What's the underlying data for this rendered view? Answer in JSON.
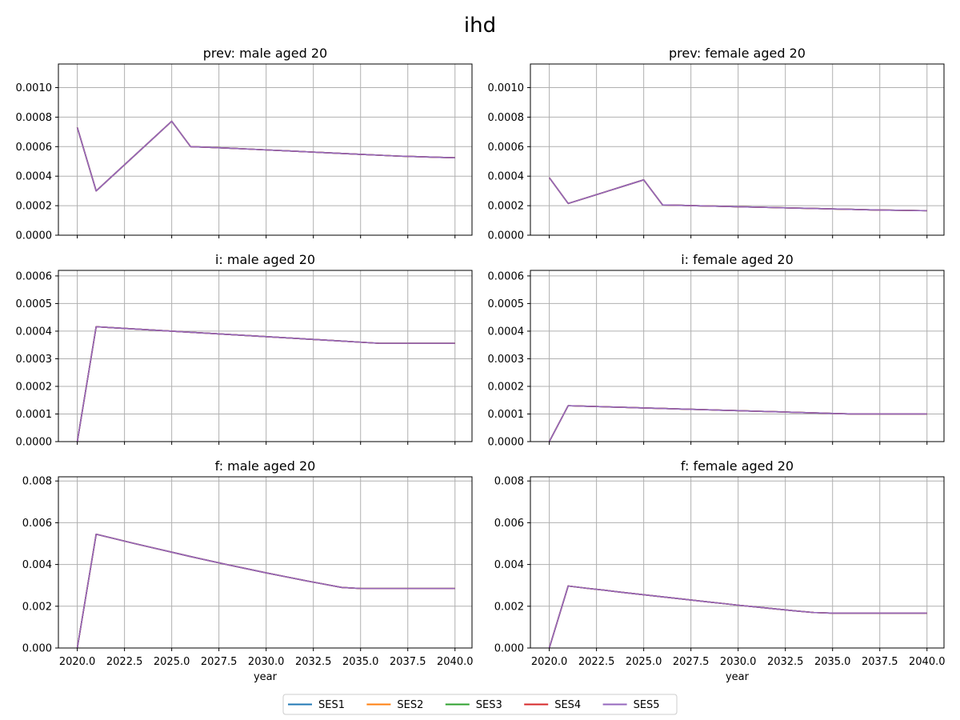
{
  "chart_data": {
    "type": "line",
    "title": "ihd",
    "xlabel": "year",
    "xlim": [
      2019.0,
      2040.9
    ],
    "x_ticks": [
      2020.0,
      2022.5,
      2025.0,
      2027.5,
      2030.0,
      2032.5,
      2035.0,
      2037.5,
      2040.0
    ],
    "x_tick_labels": [
      "2020.0",
      "2022.5",
      "2025.0",
      "2027.5",
      "2030.0",
      "2032.5",
      "2035.0",
      "2037.5",
      "2040.0"
    ],
    "x": [
      2020,
      2021,
      2022,
      2023,
      2024,
      2025,
      2026,
      2027,
      2028,
      2029,
      2030,
      2031,
      2032,
      2033,
      2034,
      2035,
      2036,
      2037,
      2038,
      2039,
      2040
    ],
    "legend": [
      "SES1",
      "SES2",
      "SES3",
      "SES4",
      "SES5"
    ],
    "series_colors": [
      "#1f77b4",
      "#ff7f0e",
      "#2ca02c",
      "#d62728",
      "#9467bd"
    ],
    "panels": [
      {
        "title": "prev: male aged 20",
        "ylim": [
          0,
          0.00116
        ],
        "y_ticks": [
          0,
          0.0002,
          0.0004,
          0.0006,
          0.0008,
          0.001
        ],
        "y_tick_labels": [
          "0.0000",
          "0.0002",
          "0.0004",
          "0.0006",
          "0.0008",
          "0.0010"
        ],
        "show_x_tick_labels": false,
        "show_xlabel": false,
        "values": [
          0.00073,
          0.0003,
          0.000418,
          0.000536,
          0.000654,
          0.000772,
          0.0006,
          0.000595,
          0.00059,
          0.000584,
          0.000578,
          0.000572,
          0.000566,
          0.00056,
          0.000554,
          0.000548,
          0.000542,
          0.000536,
          0.000532,
          0.000528,
          0.000525
        ]
      },
      {
        "title": "prev: female aged 20",
        "ylim": [
          0,
          0.00116
        ],
        "y_ticks": [
          0,
          0.0002,
          0.0004,
          0.0006,
          0.0008,
          0.001
        ],
        "y_tick_labels": [
          "0.0000",
          "0.0002",
          "0.0004",
          "0.0006",
          "0.0008",
          "0.0010"
        ],
        "show_x_tick_labels": false,
        "show_xlabel": false,
        "values": [
          0.00039,
          0.000215,
          0.000255,
          0.000295,
          0.000335,
          0.000375,
          0.000205,
          0.000202,
          0.000199,
          0.000196,
          0.000193,
          0.00019,
          0.000187,
          0.000184,
          0.000181,
          0.000178,
          0.000175,
          0.000172,
          0.00017,
          0.000168,
          0.000166
        ]
      },
      {
        "title": "i: male aged 20",
        "ylim": [
          0,
          0.00062
        ],
        "y_ticks": [
          0,
          0.0001,
          0.0002,
          0.0003,
          0.0004,
          0.0005,
          0.0006
        ],
        "y_tick_labels": [
          "0.0000",
          "0.0001",
          "0.0002",
          "0.0003",
          "0.0004",
          "0.0005",
          "0.0006"
        ],
        "show_x_tick_labels": false,
        "show_xlabel": false,
        "values": [
          0,
          0.000416,
          0.000412,
          0.000408,
          0.000404,
          0.0004,
          0.000396,
          0.000392,
          0.000388,
          0.000384,
          0.00038,
          0.000376,
          0.000372,
          0.000368,
          0.000364,
          0.00036,
          0.000356,
          0.000356,
          0.000356,
          0.000356,
          0.000356
        ]
      },
      {
        "title": "i: female aged 20",
        "ylim": [
          0,
          0.00062
        ],
        "y_ticks": [
          0,
          0.0001,
          0.0002,
          0.0003,
          0.0004,
          0.0005,
          0.0006
        ],
        "y_tick_labels": [
          "0.0000",
          "0.0001",
          "0.0002",
          "0.0003",
          "0.0004",
          "0.0005",
          "0.0006"
        ],
        "show_x_tick_labels": false,
        "show_xlabel": false,
        "values": [
          0,
          0.00013,
          0.000128,
          0.000126,
          0.000124,
          0.000122,
          0.00012,
          0.000118,
          0.000116,
          0.000114,
          0.000112,
          0.00011,
          0.000108,
          0.000106,
          0.000104,
          0.000102,
          0.0001,
          0.0001,
          0.0001,
          0.0001,
          0.0001
        ]
      },
      {
        "title": "f: male aged 20",
        "ylim": [
          0,
          0.0082
        ],
        "y_ticks": [
          0,
          0.002,
          0.004,
          0.006,
          0.008
        ],
        "y_tick_labels": [
          "0.000",
          "0.002",
          "0.004",
          "0.006",
          "0.008"
        ],
        "show_x_tick_labels": true,
        "show_xlabel": true,
        "values": [
          0,
          0.00545,
          0.00523,
          0.00501,
          0.0048,
          0.00459,
          0.00438,
          0.00418,
          0.00398,
          0.00379,
          0.0036,
          0.00342,
          0.00324,
          0.00307,
          0.0029,
          0.00285,
          0.00285,
          0.00285,
          0.00285,
          0.00285,
          0.00285
        ]
      },
      {
        "title": "f: female aged 20",
        "ylim": [
          0,
          0.0082
        ],
        "y_ticks": [
          0,
          0.002,
          0.004,
          0.006,
          0.008
        ],
        "y_tick_labels": [
          "0.000",
          "0.002",
          "0.004",
          "0.006",
          "0.008"
        ],
        "show_x_tick_labels": true,
        "show_xlabel": true,
        "values": [
          0,
          0.00297,
          0.00286,
          0.00276,
          0.00265,
          0.00255,
          0.00245,
          0.00235,
          0.00225,
          0.00215,
          0.00205,
          0.00196,
          0.00187,
          0.00178,
          0.0017,
          0.00167,
          0.00167,
          0.00167,
          0.00167,
          0.00167,
          0.00167
        ]
      }
    ]
  }
}
